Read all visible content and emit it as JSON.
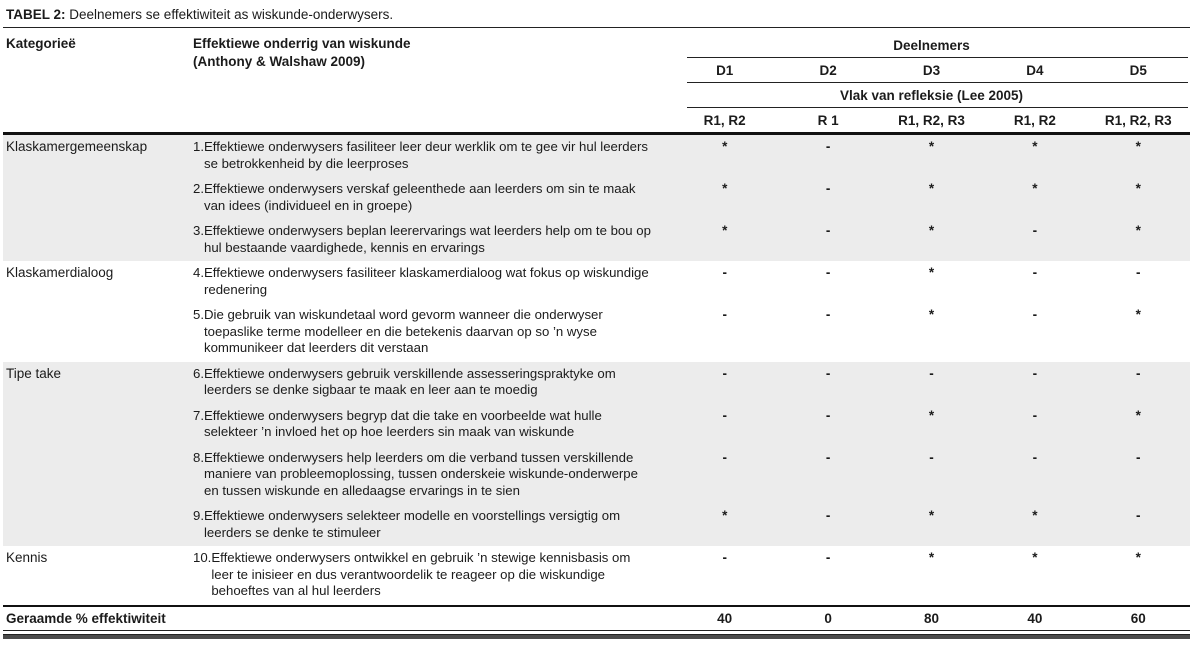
{
  "title": {
    "label": "TABEL 2:",
    "text": " Deelnemers se effektiwiteit as wiskunde-onderwysers."
  },
  "header": {
    "category_column": "Kategorieë",
    "description_column_line1": "Effektiewe onderrig van wiskunde",
    "description_column_line2": "(Anthony & Walshaw 2009)",
    "participants_label": "Deelnemers",
    "participants": [
      "D1",
      "D2",
      "D3",
      "D4",
      "D5"
    ],
    "reflection_label": "Vlak van refleksie (Lee 2005)",
    "reflection_levels": [
      "R1, R2",
      "R 1",
      "R1, R2, R3",
      "R1, R2",
      "R1, R2, R3"
    ]
  },
  "sections": [
    {
      "category": "Klaskamergemeenskap",
      "items": [
        {
          "num": "1.",
          "text": "Effektiewe onderwysers fasiliteer leer deur werklik om te gee vir hul leerders se betrokkenheid by die leerproses",
          "values": [
            "*",
            "-",
            "*",
            "*",
            "*"
          ]
        },
        {
          "num": "2.",
          "text": "Effektiewe onderwysers verskaf geleenthede aan leerders om sin te maak van idees (individueel en in groepe)",
          "values": [
            "*",
            "-",
            "*",
            "*",
            "*"
          ]
        },
        {
          "num": "3.",
          "text": "Effektiewe onderwysers beplan leerervarings wat leerders help om te bou op hul bestaande vaardighede, kennis en ervarings",
          "values": [
            "*",
            "-",
            "*",
            "-",
            "*"
          ]
        }
      ]
    },
    {
      "category": "Klaskamerdialoog",
      "items": [
        {
          "num": "4.",
          "text": "Effektiewe onderwysers fasiliteer klaskamerdialoog wat fokus op wiskundige redenering",
          "values": [
            "-",
            "-",
            "*",
            "-",
            "-"
          ]
        },
        {
          "num": "5.",
          "text": "Die gebruik van wiskundetaal word gevorm wanneer die onderwyser toepaslike terme modelleer en die betekenis daarvan op so ’n wyse kommunikeer dat leerders dit verstaan",
          "values": [
            "-",
            "-",
            "*",
            "-",
            "*"
          ]
        }
      ]
    },
    {
      "category": "Tipe take",
      "items": [
        {
          "num": "6.",
          "text": "Effektiewe onderwysers gebruik verskillende assesseringspraktyke om leerders se denke sigbaar te maak en leer aan te moedig",
          "values": [
            "-",
            "-",
            "-",
            "-",
            "-"
          ]
        },
        {
          "num": "7.",
          "text": "Effektiewe onderwysers begryp dat die take en voorbeelde wat hulle selekteer ’n invloed het op hoe leerders sin maak van wiskunde",
          "values": [
            "-",
            "-",
            "*",
            "-",
            "*"
          ]
        },
        {
          "num": "8.",
          "text": "Effektiewe onderwysers help leerders om die verband tussen verskillende maniere van probleemoplossing, tussen onderskeie wiskunde-onderwerpe en tussen wiskunde en alledaagse ervarings in te sien",
          "values": [
            "-",
            "-",
            "-",
            "-",
            "-"
          ]
        },
        {
          "num": "9.",
          "text": "Effektiewe onderwysers selekteer modelle en voorstellings versigtig om leerders se denke te stimuleer",
          "values": [
            "*",
            "-",
            "*",
            "*",
            "-"
          ]
        }
      ]
    },
    {
      "category": "Kennis",
      "items": [
        {
          "num": "10.",
          "text": "Effektiewe onderwysers ontwikkel en gebruik ’n stewige kennisbasis om leer te inisieer en dus  verantwoordelik te reageer op die wiskundige behoeftes van al hul leerders",
          "values": [
            "-",
            "-",
            "*",
            "*",
            "*"
          ]
        }
      ]
    }
  ],
  "footer": {
    "label": "Geraamde % effektiwiteit",
    "values": [
      "40",
      "0",
      "80",
      "40",
      "60"
    ]
  },
  "colors": {
    "shaded_row_background": "#ececec",
    "text": "#1b1b1b",
    "rule": "#111111"
  }
}
